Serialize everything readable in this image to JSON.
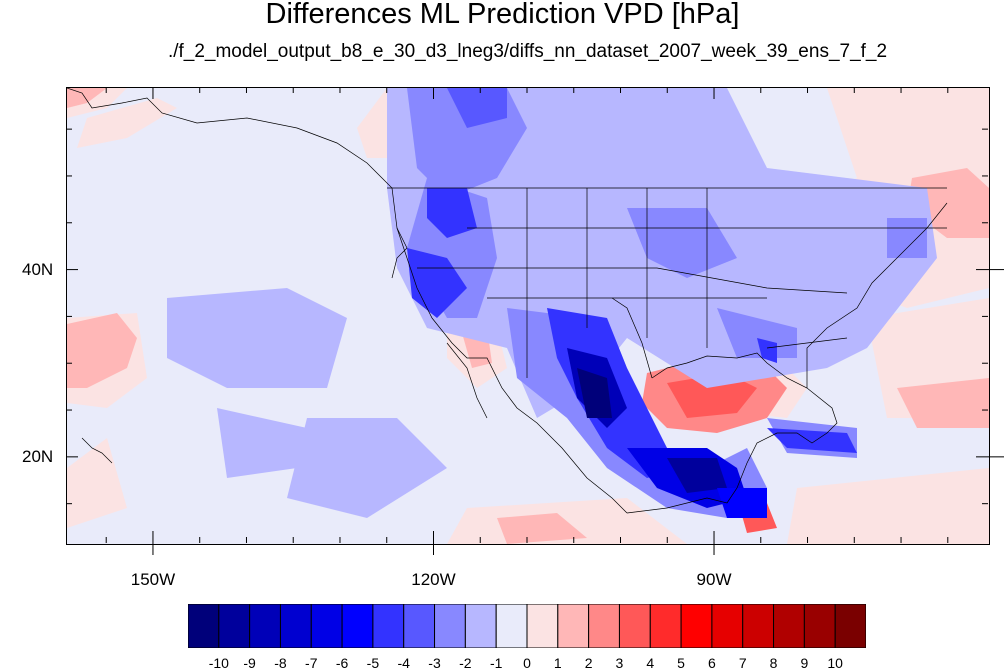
{
  "title": "Differences ML Prediction VPD [hPa]",
  "subtitle": "./f_2_model_output_b8_e_30_d3_lneg3/diffs_nn_dataset_2007_week_39_ens_7_f_2",
  "axes": {
    "lat_labels": [
      {
        "text": "40N",
        "lat": 40
      },
      {
        "text": "20N",
        "lat": 20
      }
    ],
    "lon_labels": [
      {
        "text": "150W",
        "lon": -150
      },
      {
        "text": "120W",
        "lon": -120
      },
      {
        "text": "90W",
        "lon": -90
      }
    ],
    "lon_range": [
      -159.3,
      -60.7
    ],
    "lat_range": [
      10.8,
      59.5
    ]
  },
  "colorbar": {
    "labels": [
      "-10",
      "-9",
      "-8",
      "-7",
      "-6",
      "-5",
      "-4",
      "-3",
      "-2",
      "-1",
      "0",
      "1",
      "2",
      "3",
      "4",
      "5",
      "6",
      "7",
      "8",
      "9",
      "10"
    ],
    "colors": [
      "#00007a",
      "#00009c",
      "#0000b8",
      "#0000d0",
      "#0000e6",
      "#0000ff",
      "#3333ff",
      "#5858ff",
      "#8888ff",
      "#b7b7ff",
      "#e9ebfa",
      "#fbe3e3",
      "#ffb7b7",
      "#ff8888",
      "#ff5858",
      "#ff2b2b",
      "#ff0000",
      "#e60000",
      "#cc0000",
      "#b00000",
      "#990000",
      "#7a0000"
    ]
  },
  "colors": {
    "background_field": "#e9ebfa",
    "coast": "#000000"
  }
}
